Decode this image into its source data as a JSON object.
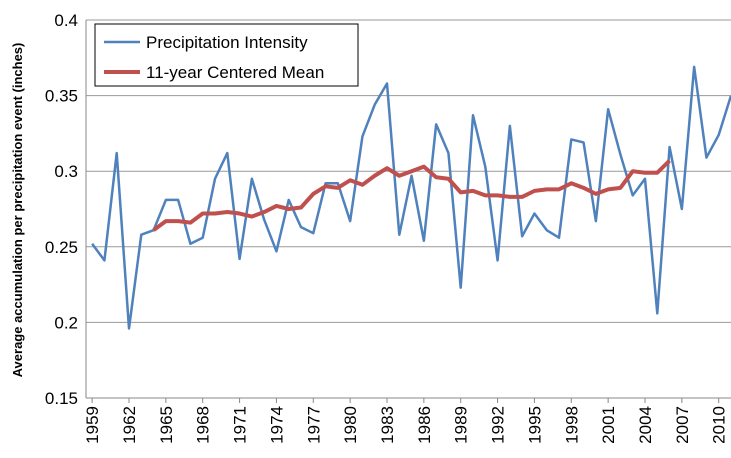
{
  "chart_data": {
    "type": "line",
    "y_label": "Average accumulation per precipitation event (inches)",
    "x": [
      1959,
      1960,
      1961,
      1962,
      1963,
      1964,
      1965,
      1966,
      1967,
      1968,
      1969,
      1970,
      1971,
      1972,
      1973,
      1974,
      1975,
      1976,
      1977,
      1978,
      1979,
      1980,
      1981,
      1982,
      1983,
      1984,
      1985,
      1986,
      1987,
      1988,
      1989,
      1990,
      1991,
      1992,
      1993,
      1994,
      1995,
      1996,
      1997,
      1998,
      1999,
      2000,
      2001,
      2002,
      2003,
      2004,
      2005,
      2006,
      2007,
      2008,
      2009,
      2010,
      2011
    ],
    "series": [
      {
        "name": "Precipitation Intensity",
        "color": "#4f81bd",
        "values": [
          0.252,
          0.241,
          0.312,
          0.196,
          0.258,
          0.261,
          0.281,
          0.281,
          0.252,
          0.256,
          0.295,
          0.312,
          0.242,
          0.295,
          0.268,
          0.247,
          0.281,
          0.263,
          0.259,
          0.292,
          0.292,
          0.267,
          0.323,
          0.344,
          0.358,
          0.258,
          0.297,
          0.254,
          0.331,
          0.312,
          0.223,
          0.337,
          0.303,
          0.241,
          0.33,
          0.257,
          0.272,
          0.261,
          0.256,
          0.321,
          0.319,
          0.267,
          0.341,
          0.311,
          0.284,
          0.295,
          0.206,
          0.316,
          0.275,
          0.369,
          0.309,
          0.324,
          0.35
        ]
      },
      {
        "name": "11-year Centered Mean",
        "color": "#c0504d",
        "values": [
          null,
          null,
          null,
          null,
          null,
          0.261,
          0.267,
          0.267,
          0.266,
          0.272,
          0.272,
          0.273,
          0.272,
          0.27,
          0.273,
          0.277,
          0.275,
          0.276,
          0.285,
          0.29,
          0.289,
          0.294,
          0.291,
          0.297,
          0.302,
          0.297,
          0.3,
          0.303,
          0.296,
          0.295,
          0.286,
          0.287,
          0.284,
          0.284,
          0.283,
          0.283,
          0.287,
          0.288,
          0.288,
          0.292,
          0.289,
          0.285,
          0.288,
          0.289,
          0.3,
          0.299,
          0.299,
          0.307,
          null,
          null,
          null,
          null,
          null
        ]
      }
    ],
    "xlim": [
      1958.5,
      2011
    ],
    "xticks": [
      1959,
      1962,
      1965,
      1968,
      1971,
      1974,
      1977,
      1980,
      1983,
      1986,
      1989,
      1992,
      1995,
      1998,
      2001,
      2004,
      2007,
      2010
    ],
    "ylim": [
      0.15,
      0.4
    ],
    "yticks": [
      0.15,
      0.2,
      0.25,
      0.3,
      0.35,
      0.4
    ],
    "grid": true,
    "legend": "upper-left"
  }
}
